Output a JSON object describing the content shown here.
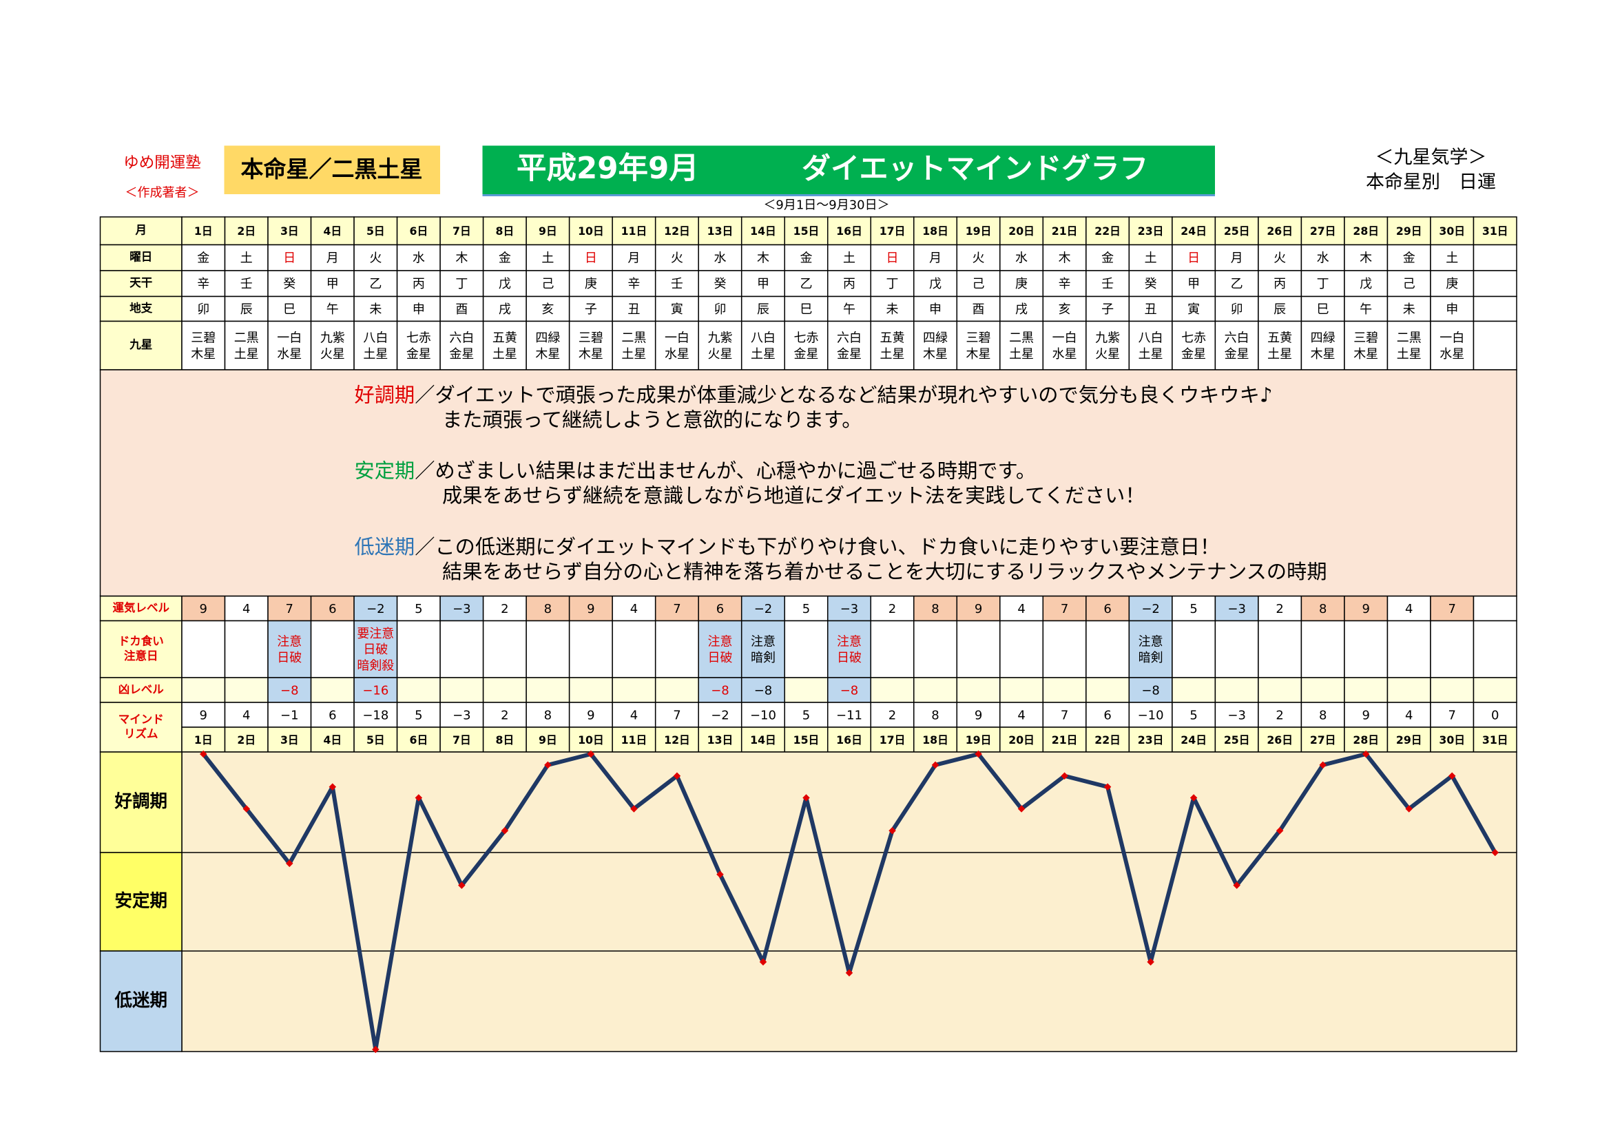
{
  "header": {
    "school": "ゆめ開運塾",
    "author": "＜作成著者＞",
    "honmei": "本命星／二黒土星",
    "title_date": "平成29年9月",
    "title": "ダイエットマインドグラフ",
    "period": "＜9月1日～9月30日＞",
    "system": "＜九星気学＞",
    "kind": "本命星別　日運"
  },
  "table": {
    "rows": [
      {
        "label": [
          "月"
        ],
        "label_color": "#000000",
        "fill": "#ffffcc",
        "cells": [
          "1日",
          "2日",
          "3日",
          "4日",
          "5日",
          "6日",
          "7日",
          "8日",
          "9日",
          "10日",
          "11日",
          "12日",
          "13日",
          "14日",
          "15日",
          "16日",
          "17日",
          "18日",
          "19日",
          "20日",
          "21日",
          "22日",
          "23日",
          "24日",
          "25日",
          "26日",
          "27日",
          "28日",
          "29日",
          "30日",
          "31日"
        ]
      },
      {
        "label": [
          "曜日"
        ],
        "label_color": "#000000",
        "fill": "#ffffff",
        "cells": [
          "金",
          "土",
          "日",
          "月",
          "火",
          "水",
          "木",
          "金",
          "土",
          "日",
          "月",
          "火",
          "水",
          "木",
          "金",
          "土",
          "日",
          "月",
          "火",
          "水",
          "木",
          "金",
          "土",
          "日",
          "月",
          "火",
          "水",
          "木",
          "金",
          "土",
          null
        ],
        "colors": [
          null,
          null,
          "#e00000",
          null,
          null,
          null,
          null,
          null,
          null,
          "#e00000",
          null,
          null,
          null,
          null,
          null,
          null,
          "#e00000",
          null,
          null,
          null,
          null,
          null,
          null,
          "#e00000",
          null,
          null,
          null,
          null,
          null,
          null,
          null
        ]
      },
      {
        "label": [
          "天干"
        ],
        "label_color": "#000000",
        "fill": "#ffffff",
        "cells": [
          "辛",
          "壬",
          "癸",
          "甲",
          "乙",
          "丙",
          "丁",
          "戊",
          "己",
          "庚",
          "辛",
          "壬",
          "癸",
          "甲",
          "乙",
          "丙",
          "丁",
          "戊",
          "己",
          "庚",
          "辛",
          "壬",
          "癸",
          "甲",
          "乙",
          "丙",
          "丁",
          "戊",
          "己",
          "庚",
          null
        ]
      },
      {
        "label": [
          "地支"
        ],
        "label_color": "#000000",
        "fill": "#ffffff",
        "cells": [
          "卯",
          "辰",
          "巳",
          "午",
          "未",
          "申",
          "酉",
          "戌",
          "亥",
          "子",
          "丑",
          "寅",
          "卯",
          "辰",
          "巳",
          "午",
          "未",
          "申",
          "酉",
          "戌",
          "亥",
          "子",
          "丑",
          "寅",
          "卯",
          "辰",
          "巳",
          "午",
          "未",
          "申",
          null
        ]
      },
      {
        "label": [
          "九星"
        ],
        "label_color": "#000000",
        "fill": "#ffffff",
        "cells": [
          [
            "三碧",
            "木星"
          ],
          [
            "二黒",
            "土星"
          ],
          [
            "一白",
            "水星"
          ],
          [
            "九紫",
            "火星"
          ],
          [
            "八白",
            "土星"
          ],
          [
            "七赤",
            "金星"
          ],
          [
            "六白",
            "金星"
          ],
          [
            "五黄",
            "土星"
          ],
          [
            "四緑",
            "木星"
          ],
          [
            "三碧",
            "木星"
          ],
          [
            "二黒",
            "土星"
          ],
          [
            "一白",
            "水星"
          ],
          [
            "九紫",
            "火星"
          ],
          [
            "八白",
            "土星"
          ],
          [
            "七赤",
            "金星"
          ],
          [
            "六白",
            "金星"
          ],
          [
            "五黄",
            "土星"
          ],
          [
            "四緑",
            "木星"
          ],
          [
            "三碧",
            "木星"
          ],
          [
            "二黒",
            "土星"
          ],
          [
            "一白",
            "水星"
          ],
          [
            "九紫",
            "火星"
          ],
          [
            "八白",
            "土星"
          ],
          [
            "七赤",
            "金星"
          ],
          [
            "六白",
            "金星"
          ],
          [
            "五黄",
            "土星"
          ],
          [
            "四緑",
            "木星"
          ],
          [
            "三碧",
            "木星"
          ],
          [
            "二黒",
            "土星"
          ],
          [
            "一白",
            "水星"
          ],
          null
        ]
      },
      {
        "label": [
          "運気レベル"
        ],
        "label_color": "#e00000",
        "fill": "#ffffff",
        "cells": [
          "9",
          "4",
          "7",
          "6",
          "−2",
          "5",
          "−3",
          "2",
          "8",
          "9",
          "4",
          "7",
          "6",
          "−2",
          "5",
          "−3",
          "2",
          "8",
          "9",
          "4",
          "7",
          "6",
          "−2",
          "5",
          "−3",
          "2",
          "8",
          "9",
          "4",
          "7",
          null
        ],
        "fills": [
          "#f8cbad",
          null,
          "#f8cbad",
          "#f8cbad",
          "#bdd7ee",
          null,
          "#bdd7ee",
          null,
          "#f8cbad",
          "#f8cbad",
          null,
          "#f8cbad",
          "#f8cbad",
          "#bdd7ee",
          null,
          "#bdd7ee",
          null,
          "#f8cbad",
          "#f8cbad",
          null,
          "#f8cbad",
          "#f8cbad",
          "#bdd7ee",
          null,
          "#bdd7ee",
          null,
          "#f8cbad",
          "#f8cbad",
          null,
          "#f8cbad",
          null
        ]
      },
      {
        "label": [
          "ドカ食い",
          "注意日"
        ],
        "label_color": "#e00000",
        "fill": "#ffffff",
        "cells": [
          null,
          null,
          [
            "注意",
            "日破"
          ],
          null,
          [
            "要注意",
            "日破",
            "暗剣殺"
          ],
          null,
          null,
          null,
          null,
          null,
          null,
          null,
          [
            "注意",
            "日破"
          ],
          [
            "注意",
            "暗剣"
          ],
          null,
          [
            "注意",
            "日破"
          ],
          null,
          null,
          null,
          null,
          null,
          null,
          [
            "注意",
            "暗剣"
          ],
          null,
          null,
          null,
          null,
          null,
          null,
          null,
          null
        ],
        "fills": [
          null,
          null,
          "#bdd7ee",
          null,
          "#bdd7ee",
          null,
          null,
          null,
          null,
          null,
          null,
          null,
          "#bdd7ee",
          "#bdd7ee",
          null,
          "#bdd7ee",
          null,
          null,
          null,
          null,
          null,
          null,
          "#bdd7ee",
          null,
          null,
          null,
          null,
          null,
          null,
          null,
          null
        ],
        "colors": [
          null,
          null,
          "#e00000",
          null,
          "#e00000",
          null,
          null,
          null,
          null,
          null,
          null,
          null,
          "#e00000",
          null,
          null,
          "#e00000",
          null,
          null,
          null,
          null,
          null,
          null,
          null,
          null,
          null,
          null,
          null,
          null,
          null,
          null,
          null
        ]
      },
      {
        "label": [
          "凶レベル"
        ],
        "label_color": "#e00000",
        "fill": "#ffffe0",
        "cells": [
          null,
          null,
          "−8",
          null,
          "−16",
          null,
          null,
          null,
          null,
          null,
          null,
          null,
          "−8",
          "−8",
          null,
          "−8",
          null,
          null,
          null,
          null,
          null,
          null,
          "−8",
          null,
          null,
          null,
          null,
          null,
          null,
          null,
          null
        ],
        "fills": [
          null,
          null,
          "#bdd7ee",
          null,
          "#bdd7ee",
          null,
          null,
          null,
          null,
          null,
          null,
          null,
          "#bdd7ee",
          "#bdd7ee",
          null,
          "#bdd7ee",
          null,
          null,
          null,
          null,
          null,
          null,
          "#bdd7ee",
          null,
          null,
          null,
          null,
          null,
          null,
          null,
          null
        ],
        "colors": [
          null,
          null,
          "#e00000",
          null,
          "#e00000",
          null,
          null,
          null,
          null,
          null,
          null,
          null,
          "#e00000",
          null,
          null,
          "#e00000",
          null,
          null,
          null,
          null,
          null,
          null,
          null,
          null,
          null,
          null,
          null,
          null,
          null,
          null,
          null
        ]
      },
      {
        "label": [
          "マインド",
          "リズム"
        ],
        "label_color": "#e00000",
        "fill": "#ffffff",
        "cells": [
          "9",
          "4",
          "−1",
          "6",
          "−18",
          "5",
          "−3",
          "2",
          "8",
          "9",
          "4",
          "7",
          "−2",
          "−10",
          "5",
          "−11",
          "2",
          "8",
          "9",
          "4",
          "7",
          "6",
          "−10",
          "5",
          "−3",
          "2",
          "8",
          "9",
          "4",
          "7",
          "0"
        ]
      }
    ]
  },
  "notes": [
    {
      "term": "好調期",
      "color": "#e00000",
      "lines": [
        "／ダイエットで頑張った成果が体重減少となるなど結果が現れやすいので気分も良くウキウキ♪",
        "また頑張って継続しようと意欲的になります。"
      ]
    },
    {
      "term": "安定期",
      "color": "#00a040",
      "lines": [
        "／めざましい結果はまだ出ませんが、心穏やかに過ごせる時期です。",
        "成果をあせらず継続を意識しながら地道にダイエット法を実践してください！"
      ]
    },
    {
      "term": "低迷期",
      "color": "#2e75b6",
      "lines": [
        "／この低迷期にダイエットマインドも下がりやけ食い、ドカ食いに走りやすい要注意日！",
        "結果をあせらず自分の心と精神を落ち着かせることを大切にするリラックスやメンテナンスの時期"
      ]
    }
  ],
  "chart_data": {
    "type": "line",
    "categories": [
      "1日",
      "2日",
      "3日",
      "4日",
      "5日",
      "6日",
      "7日",
      "8日",
      "9日",
      "10日",
      "11日",
      "12日",
      "13日",
      "14日",
      "15日",
      "16日",
      "17日",
      "18日",
      "19日",
      "20日",
      "21日",
      "22日",
      "23日",
      "24日",
      "25日",
      "26日",
      "27日",
      "28日",
      "29日",
      "30日",
      "31日"
    ],
    "values": [
      9,
      4,
      -1,
      6,
      -18,
      5,
      -3,
      2,
      8,
      9,
      4,
      7,
      -2,
      -10,
      5,
      -11,
      2,
      8,
      9,
      4,
      7,
      6,
      -10,
      5,
      -3,
      2,
      8,
      9,
      4,
      7,
      0
    ],
    "ylim": [
      -18,
      9
    ],
    "yticks": [
      0,
      -9
    ],
    "color": "#1f3864",
    "marker_color": "#e00000",
    "background": "#fcefcf",
    "bands": [
      {
        "label": "好調期",
        "color": "#ffff99"
      },
      {
        "label": "安定期",
        "color": "#ffff66"
      },
      {
        "label": "低迷期",
        "color": "#bdd7ee"
      }
    ]
  }
}
